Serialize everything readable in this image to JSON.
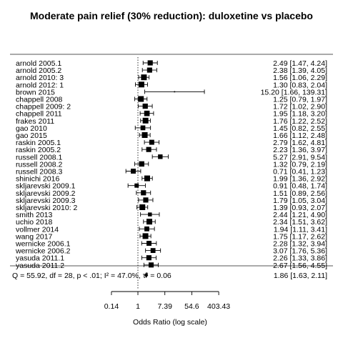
{
  "chart_data": {
    "type": "forest",
    "title": "Moderate pain relief (30% reduction): duloxetine vs placebo",
    "xlabel": "Odds Ratio (log scale)",
    "x_scale": "log",
    "xlim": [
      0.05,
      800
    ],
    "ticks": [
      {
        "value": 0.14,
        "label": "0.14"
      },
      {
        "value": 1,
        "label": "1"
      },
      {
        "value": 7.39,
        "label": "7.39"
      },
      {
        "value": 54.6,
        "label": "54.6"
      },
      {
        "value": 403.43,
        "label": "403.43"
      }
    ],
    "studies": [
      {
        "label": "arnold 2005.1",
        "or": 2.49,
        "lo": 1.47,
        "hi": 4.24,
        "text": "2.49 [1.47,  4.24]"
      },
      {
        "label": "arnold 2005.2",
        "or": 2.38,
        "lo": 1.39,
        "hi": 4.05,
        "text": "2.38 [1.39,  4.05]"
      },
      {
        "label": "arnold 2010: 3",
        "or": 1.56,
        "lo": 1.06,
        "hi": 2.29,
        "text": "1.56 [1.06,  2.29]"
      },
      {
        "label": "arnold 2012: 1",
        "or": 1.3,
        "lo": 0.83,
        "hi": 2.04,
        "text": "1.30 [0.83,  2.04]"
      },
      {
        "label": "brown 2015",
        "or": 15.2,
        "lo": 1.66,
        "hi": 139.31,
        "text": "15.20 [1.66, 139.31]"
      },
      {
        "label": "chappell 2008",
        "or": 1.25,
        "lo": 0.79,
        "hi": 1.97,
        "text": "1.25 [0.79,  1.97]"
      },
      {
        "label": "chappell 2009: 2",
        "or": 1.72,
        "lo": 1.02,
        "hi": 2.9,
        "text": "1.72 [1.02,  2.90]"
      },
      {
        "label": "chappell 2011",
        "or": 1.95,
        "lo": 1.18,
        "hi": 3.2,
        "text": "1.95 [1.18,  3.20]"
      },
      {
        "label": "frakes 2011",
        "or": 1.76,
        "lo": 1.22,
        "hi": 2.52,
        "text": "1.76 [1.22,  2.52]"
      },
      {
        "label": "gao 2010",
        "or": 1.45,
        "lo": 0.82,
        "hi": 2.55,
        "text": "1.45 [0.82,  2.55]"
      },
      {
        "label": "gao 2015",
        "or": 1.66,
        "lo": 1.12,
        "hi": 2.48,
        "text": "1.66 [1.12,  2.48]"
      },
      {
        "label": "raskin 2005.1",
        "or": 2.79,
        "lo": 1.62,
        "hi": 4.81,
        "text": "2.79 [1.62,  4.81]"
      },
      {
        "label": "raskin 2005.2",
        "or": 2.23,
        "lo": 1.36,
        "hi": 3.97,
        "text": "2.23 [1.36,  3.97]"
      },
      {
        "label": "russell 2008.1",
        "or": 5.27,
        "lo": 2.91,
        "hi": 9.54,
        "text": "5.27 [2.91,  9.54]"
      },
      {
        "label": "russell 2008.2",
        "or": 1.32,
        "lo": 0.79,
        "hi": 2.19,
        "text": "1.32 [0.79,  2.19]"
      },
      {
        "label": "russell 2008.3",
        "or": 0.71,
        "lo": 0.41,
        "hi": 1.23,
        "text": "0.71 [0.41,  1.23]"
      },
      {
        "label": "shinichi 2016",
        "or": 1.99,
        "lo": 1.36,
        "hi": 2.92,
        "text": "1.99 [1.36,  2.92]"
      },
      {
        "label": "skljarevski 2009.1",
        "or": 0.91,
        "lo": 0.48,
        "hi": 1.74,
        "text": "0.91 [0.48,  1.74]"
      },
      {
        "label": "skljarevski 2009.2",
        "or": 1.51,
        "lo": 0.89,
        "hi": 2.56,
        "text": "1.51 [0.89,  2.56]"
      },
      {
        "label": "skljarevski 2009.3",
        "or": 1.79,
        "lo": 1.05,
        "hi": 3.04,
        "text": "1.79 [1.05,  3.04]"
      },
      {
        "label": "skljarevski 2010: 2",
        "or": 1.39,
        "lo": 0.93,
        "hi": 2.07,
        "text": "1.39 [0.93,  2.07]"
      },
      {
        "label": "smith 2013",
        "or": 2.44,
        "lo": 1.21,
        "hi": 4.9,
        "text": "2.44 [1.21,  4.90]"
      },
      {
        "label": "uchio 2018",
        "or": 2.34,
        "lo": 1.51,
        "hi": 3.62,
        "text": "2.34 [1.51,  3.62]"
      },
      {
        "label": "vollmer 2014",
        "or": 1.94,
        "lo": 1.11,
        "hi": 3.41,
        "text": "1.94 [1.11,  3.41]"
      },
      {
        "label": "wang 2017",
        "or": 1.75,
        "lo": 1.17,
        "hi": 2.62,
        "text": "1.75 [1.17,  2.62]"
      },
      {
        "label": "wernicke 2006.1",
        "or": 2.28,
        "lo": 1.32,
        "hi": 3.94,
        "text": "2.28 [1.32,  3.94]"
      },
      {
        "label": "wernicke 2006.2",
        "or": 3.07,
        "lo": 1.76,
        "hi": 5.36,
        "text": "3.07 [1.76,  5.36]"
      },
      {
        "label": "yasuda 2011.1",
        "or": 2.26,
        "lo": 1.33,
        "hi": 3.86,
        "text": "2.26 [1.33,  3.86]"
      },
      {
        "label": "yasuda 2011.2",
        "or": 2.67,
        "lo": 1.56,
        "hi": 4.55,
        "text": "2.67 [1.56,  4.55]"
      }
    ],
    "summary": {
      "label": "Q = 55.92, df = 28, p < .01; I² = 47.0%, τ² = 0.06",
      "or": 1.86,
      "lo": 1.63,
      "hi": 2.11,
      "text": "1.86 [1.63,  2.11]"
    }
  }
}
